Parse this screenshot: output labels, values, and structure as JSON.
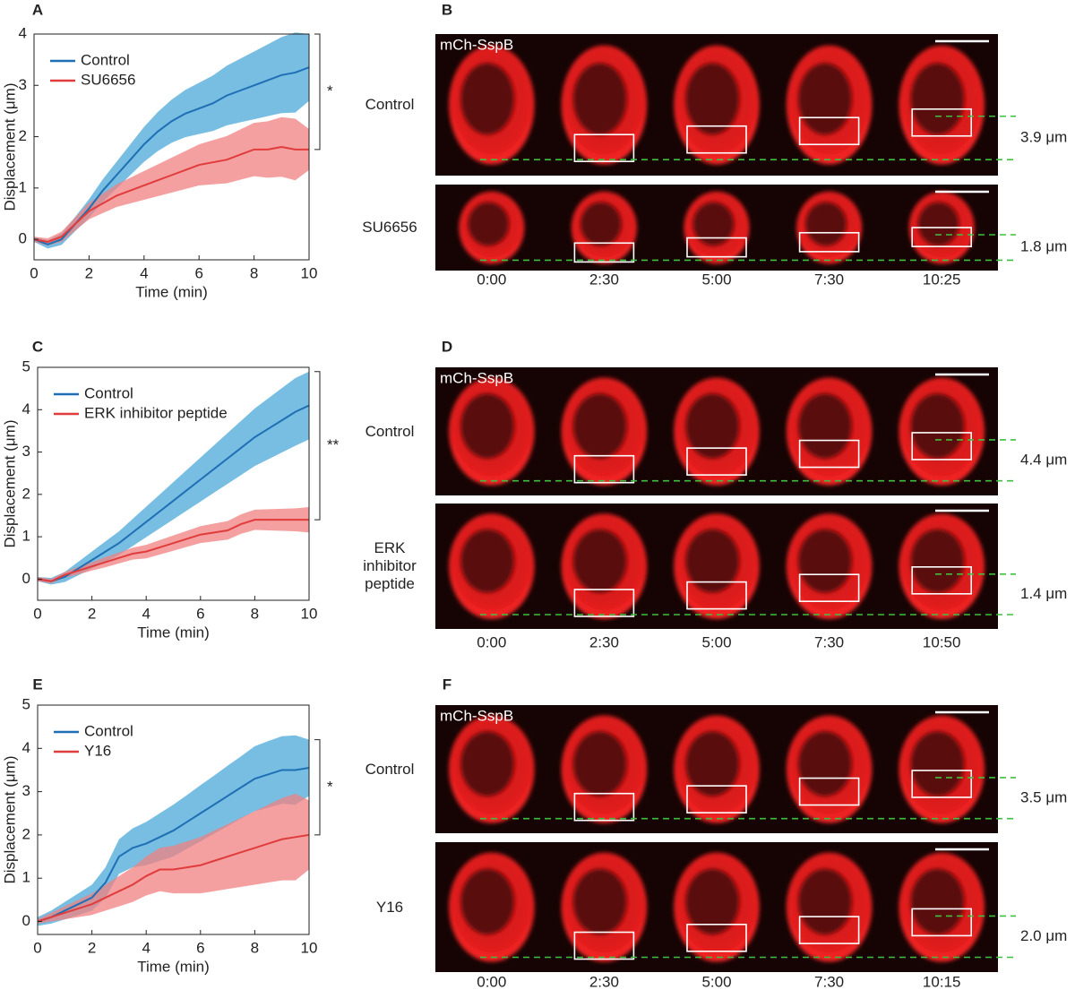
{
  "chart_data": [
    {
      "type": "line",
      "panel": "A",
      "xlabel": "Time (min)",
      "ylabel": "Displacement (μm)",
      "x": [
        0,
        0.5,
        1,
        1.5,
        2,
        2.5,
        3,
        3.5,
        4,
        4.5,
        5,
        5.5,
        6,
        6.5,
        7,
        7.5,
        8,
        8.5,
        9,
        9.5,
        10
      ],
      "xlim": [
        0,
        10
      ],
      "xticks": [
        0,
        2,
        4,
        6,
        8,
        10
      ],
      "ylim": [
        -0.4,
        4
      ],
      "yticks": [
        0,
        1,
        2,
        3,
        4
      ],
      "legend": "upper left",
      "annotation": "*",
      "series": [
        {
          "name": "Control",
          "color": "#1f6fb4",
          "band_color": "#4aa8d8",
          "values": [
            0,
            -0.1,
            0,
            0.3,
            0.6,
            0.95,
            1.25,
            1.55,
            1.85,
            2.1,
            2.3,
            2.45,
            2.55,
            2.65,
            2.8,
            2.9,
            3.0,
            3.1,
            3.2,
            3.25,
            3.35
          ],
          "upper": [
            0.05,
            -0.02,
            0.11,
            0.44,
            0.78,
            1.17,
            1.51,
            1.85,
            2.19,
            2.48,
            2.72,
            2.91,
            3.05,
            3.19,
            3.38,
            3.52,
            3.66,
            3.8,
            3.94,
            4.03,
            4.0
          ],
          "lower": [
            -0.05,
            -0.18,
            -0.11,
            0.16,
            0.42,
            0.73,
            0.99,
            1.25,
            1.51,
            1.72,
            1.88,
            1.99,
            2.05,
            2.11,
            2.22,
            2.28,
            2.34,
            2.4,
            2.46,
            2.47,
            2.7
          ]
        },
        {
          "name": "SU6656",
          "color": "#e03c3c",
          "band_color": "#f08080",
          "values": [
            0,
            -0.05,
            0.05,
            0.3,
            0.55,
            0.7,
            0.85,
            0.95,
            1.05,
            1.15,
            1.25,
            1.35,
            1.45,
            1.5,
            1.55,
            1.65,
            1.75,
            1.75,
            1.8,
            1.75,
            1.75
          ],
          "upper": [
            0.05,
            0.02,
            0.15,
            0.43,
            0.71,
            0.89,
            1.07,
            1.2,
            1.33,
            1.46,
            1.59,
            1.72,
            1.85,
            1.93,
            2.01,
            2.14,
            2.27,
            2.3,
            2.38,
            2.35,
            2.15
          ],
          "lower": [
            -0.05,
            -0.12,
            -0.05,
            0.17,
            0.39,
            0.51,
            0.63,
            0.7,
            0.77,
            0.84,
            0.91,
            0.98,
            1.05,
            1.07,
            1.09,
            1.16,
            1.23,
            1.2,
            1.22,
            1.15,
            1.35
          ]
        }
      ]
    },
    {
      "type": "line",
      "panel": "C",
      "xlabel": "Time (min)",
      "ylabel": "Displacement (μm)",
      "x": [
        0,
        0.5,
        1,
        1.5,
        2,
        2.5,
        3,
        3.5,
        4,
        4.5,
        5,
        5.5,
        6,
        6.5,
        7,
        7.5,
        8,
        8.5,
        9,
        9.5,
        10
      ],
      "xlim": [
        0,
        10
      ],
      "xticks": [
        0,
        2,
        4,
        6,
        8,
        10
      ],
      "ylim": [
        -0.5,
        5
      ],
      "yticks": [
        0,
        1,
        2,
        3,
        4,
        5
      ],
      "legend": "upper left",
      "annotation": "**",
      "series": [
        {
          "name": "Control",
          "color": "#1f6fb4",
          "band_color": "#4aa8d8",
          "values": [
            0,
            -0.05,
            0.05,
            0.25,
            0.45,
            0.65,
            0.85,
            1.1,
            1.35,
            1.6,
            1.85,
            2.1,
            2.35,
            2.6,
            2.85,
            3.1,
            3.35,
            3.55,
            3.75,
            3.95,
            4.1
          ],
          "upper": [
            0.05,
            0.03,
            0.17,
            0.41,
            0.65,
            0.89,
            1.13,
            1.42,
            1.71,
            2.0,
            2.29,
            2.58,
            2.87,
            3.16,
            3.45,
            3.74,
            4.03,
            4.27,
            4.51,
            4.75,
            4.9
          ],
          "lower": [
            -0.05,
            -0.13,
            -0.07,
            0.09,
            0.25,
            0.41,
            0.57,
            0.78,
            0.99,
            1.2,
            1.41,
            1.62,
            1.83,
            2.04,
            2.25,
            2.46,
            2.67,
            2.83,
            2.99,
            3.15,
            3.3
          ]
        },
        {
          "name": "ERK inhibitor peptide",
          "color": "#e03c3c",
          "band_color": "#f08080",
          "values": [
            0,
            -0.05,
            0.1,
            0.2,
            0.3,
            0.4,
            0.5,
            0.6,
            0.65,
            0.75,
            0.85,
            0.95,
            1.05,
            1.1,
            1.15,
            1.3,
            1.4,
            1.4,
            1.4,
            1.4,
            1.4
          ],
          "upper": [
            0.05,
            0.0,
            0.17,
            0.29,
            0.4,
            0.52,
            0.63,
            0.74,
            0.81,
            0.92,
            1.03,
            1.14,
            1.25,
            1.31,
            1.37,
            1.53,
            1.64,
            1.65,
            1.66,
            1.67,
            1.7
          ],
          "lower": [
            -0.05,
            -0.1,
            0.03,
            0.11,
            0.2,
            0.28,
            0.37,
            0.46,
            0.49,
            0.58,
            0.67,
            0.76,
            0.85,
            0.89,
            0.93,
            1.07,
            1.16,
            1.15,
            1.14,
            1.13,
            1.1
          ]
        }
      ]
    },
    {
      "type": "line",
      "panel": "E",
      "xlabel": "Time (min)",
      "ylabel": "Displacement (μm)",
      "x": [
        0,
        0.5,
        1,
        1.5,
        2,
        2.5,
        3,
        3.5,
        4,
        4.5,
        5,
        5.5,
        6,
        6.5,
        7,
        7.5,
        8,
        8.5,
        9,
        9.5,
        10
      ],
      "xlim": [
        0,
        10
      ],
      "xticks": [
        0,
        2,
        4,
        6,
        8,
        10
      ],
      "ylim": [
        -0.3,
        5
      ],
      "yticks": [
        0,
        1,
        2,
        3,
        4,
        5
      ],
      "legend": "upper left",
      "annotation": "*",
      "series": [
        {
          "name": "Control",
          "color": "#1f6fb4",
          "band_color": "#4aa8d8",
          "values": [
            0,
            0.1,
            0.25,
            0.4,
            0.55,
            0.9,
            1.5,
            1.7,
            1.8,
            1.95,
            2.1,
            2.3,
            2.5,
            2.7,
            2.9,
            3.1,
            3.3,
            3.4,
            3.5,
            3.5,
            3.55
          ],
          "upper": [
            0.1,
            0.25,
            0.45,
            0.65,
            0.85,
            1.25,
            1.9,
            2.15,
            2.3,
            2.5,
            2.7,
            2.92,
            3.15,
            3.37,
            3.6,
            3.82,
            4.05,
            4.17,
            4.28,
            4.3,
            4.2
          ],
          "lower": [
            -0.1,
            -0.05,
            0.05,
            0.15,
            0.25,
            0.55,
            1.1,
            1.25,
            1.3,
            1.4,
            1.5,
            1.68,
            1.85,
            2.03,
            2.2,
            2.38,
            2.55,
            2.63,
            2.72,
            2.7,
            2.9
          ]
        },
        {
          "name": "Y16",
          "color": "#e03c3c",
          "band_color": "#f08080",
          "values": [
            0,
            0.1,
            0.2,
            0.3,
            0.4,
            0.55,
            0.7,
            0.85,
            1.05,
            1.2,
            1.2,
            1.25,
            1.3,
            1.4,
            1.5,
            1.6,
            1.7,
            1.8,
            1.9,
            1.95,
            2.0
          ],
          "upper": [
            0.05,
            0.2,
            0.35,
            0.5,
            0.65,
            0.85,
            1.05,
            1.25,
            1.5,
            1.7,
            1.75,
            1.85,
            1.95,
            2.1,
            2.25,
            2.4,
            2.55,
            2.7,
            2.85,
            2.95,
            2.8
          ],
          "lower": [
            -0.05,
            0.0,
            0.05,
            0.1,
            0.15,
            0.25,
            0.35,
            0.45,
            0.6,
            0.7,
            0.65,
            0.65,
            0.65,
            0.7,
            0.75,
            0.8,
            0.85,
            0.9,
            0.95,
            0.95,
            1.2
          ]
        }
      ]
    }
  ],
  "image_panels": [
    {
      "panel": "B",
      "channel_label": "mCh-SspB",
      "rows": [
        {
          "label": "Control",
          "displacement": "3.9 μm"
        },
        {
          "label": "SU6656",
          "displacement": "1.8 μm"
        }
      ],
      "times": [
        "0:00",
        "2:30",
        "5:00",
        "7:30",
        "10:25"
      ]
    },
    {
      "panel": "D",
      "channel_label": "mCh-SspB",
      "rows": [
        {
          "label": "Control",
          "displacement": "4.4 μm"
        },
        {
          "label": "ERK inhibitor peptide",
          "displacement": "1.4 μm"
        }
      ],
      "times": [
        "0:00",
        "2:30",
        "5:00",
        "7:30",
        "10:50"
      ]
    },
    {
      "panel": "F",
      "channel_label": "mCh-SspB",
      "rows": [
        {
          "label": "Control",
          "displacement": "3.5 μm"
        },
        {
          "label": "Y16",
          "displacement": "2.0 μm"
        }
      ],
      "times": [
        "0:00",
        "2:30",
        "5:00",
        "7:30",
        "10:15"
      ]
    }
  ]
}
